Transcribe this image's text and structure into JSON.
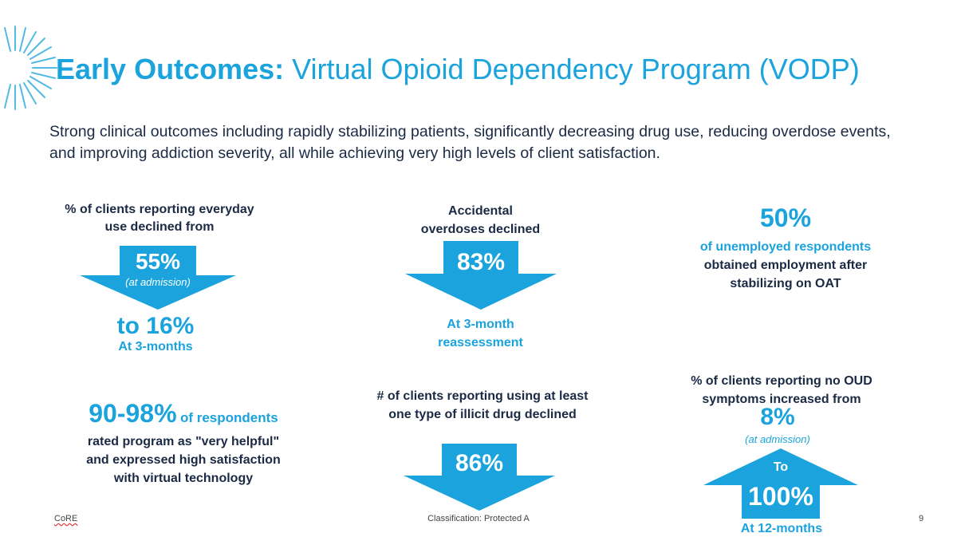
{
  "header": {
    "title_bold": "Early Outcomes:",
    "title_rest": " Virtual Opioid Dependency Program (VODP)",
    "subtitle": "Strong clinical outcomes including rapidly stabilizing patients, significantly decreasing drug use, reducing overdose events, and improving addiction severity, all while achieving very high levels of client satisfaction."
  },
  "stat_everyday_use": {
    "label_line1": "% of clients reporting everyday",
    "label_line2": "use declined from",
    "from_value": "55%",
    "from_note": "(at admission)",
    "to_value": "to 16%",
    "to_note": "At 3-months"
  },
  "stat_overdoses": {
    "label_line1": "Accidental",
    "label_line2": "overdoses declined",
    "value": "83%",
    "note_line1": "At 3-month",
    "note_line2": "reassessment"
  },
  "stat_employment": {
    "value": "50%",
    "line1": "of unemployed respondents",
    "line2": "obtained employment after",
    "line3": "stabilizing on OAT"
  },
  "stat_satisfaction": {
    "value": "90-98%",
    "value_suffix": "of respondents",
    "line1": "rated program as \"very helpful\"",
    "line2": "and expressed high satisfaction",
    "line3": "with virtual technology"
  },
  "stat_illicit": {
    "label_line1": "# of clients reporting using at least",
    "label_line2": "one type of illicit drug declined",
    "value": "86%"
  },
  "stat_oud": {
    "label_line1": "% of clients reporting no OUD",
    "label_line2": "symptoms increased from",
    "from_value": "8%",
    "from_note": "(at admission)",
    "to_word": "To",
    "to_value": "100%",
    "to_note": "At 12-months"
  },
  "footer": {
    "org": "CoRE",
    "classification": "Classification: Protected A",
    "page_number": "9"
  },
  "colors": {
    "accent": "#1aa3dc",
    "dark_text": "#1b2a44"
  }
}
